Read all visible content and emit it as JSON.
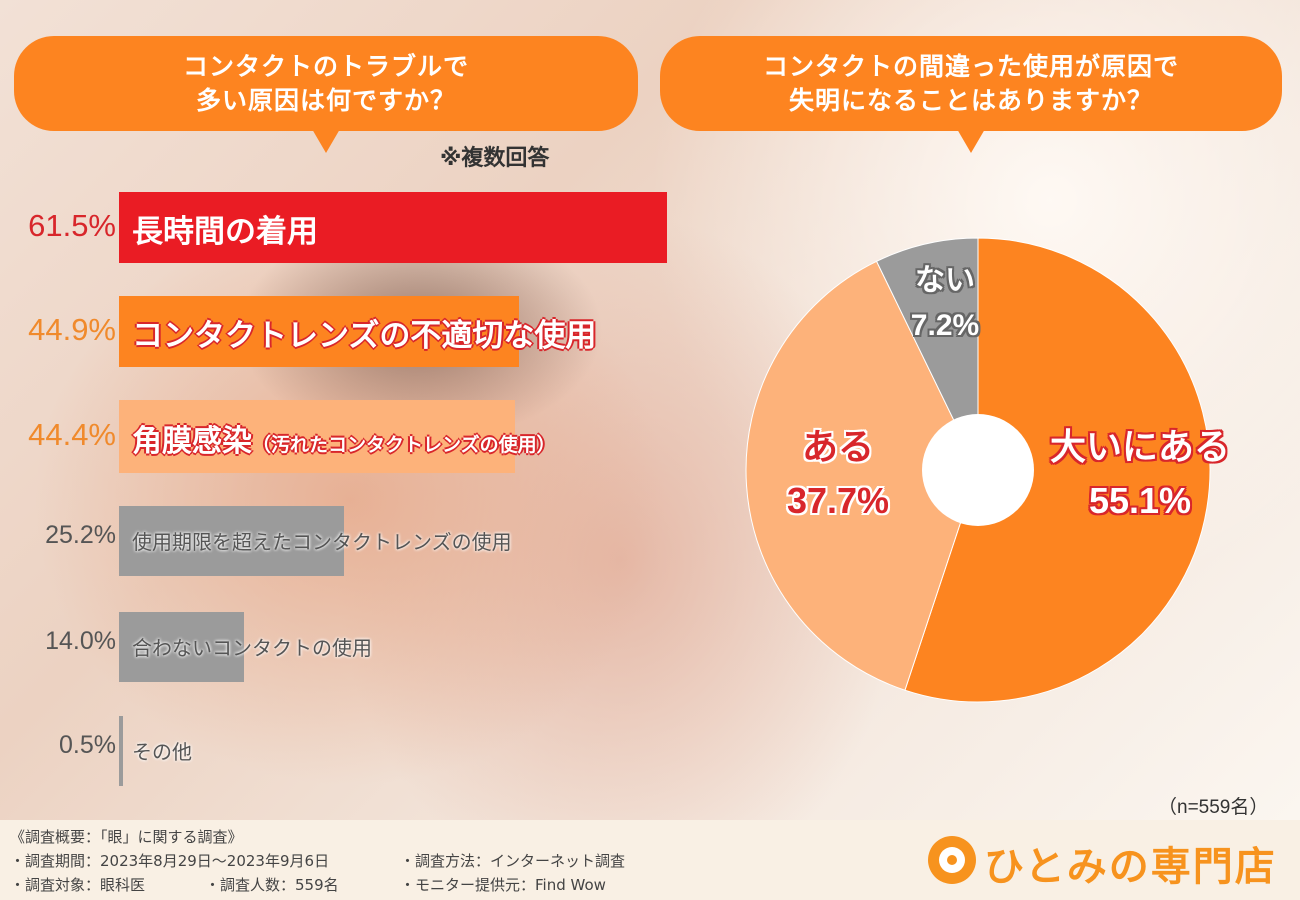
{
  "left_panel": {
    "title_line1": "コンタクトのトラブルで",
    "title_line2": "多い原因は何ですか？",
    "note": "※複数回答"
  },
  "right_panel": {
    "title_line1": "コンタクトの間違った使用が原因で",
    "title_line2": "失明になることはありますか？"
  },
  "colors": {
    "orange": "#fd8420",
    "red": "#ea1c24",
    "light_orange": "#fdb27a",
    "gray": "#9b9b9b",
    "text_red": "#d8262b",
    "text_orange": "#f08a2c",
    "text_gray": "#555555"
  },
  "chart_data": [
    {
      "type": "bar",
      "orientation": "horizontal",
      "note": "※複数回答",
      "categories": [
        "長時間の着用",
        "コンタクトレンズの不適切な使用",
        "角膜感染",
        "使用期限を超えたコンタクトレンズの使用",
        "合わないコンタクトの使用",
        "その他"
      ],
      "category_suffixes": [
        "",
        "",
        "（汚れたコンタクトレンズの使用）",
        "",
        "",
        ""
      ],
      "values": [
        61.5,
        44.9,
        44.4,
        25.2,
        14.0,
        0.5
      ],
      "value_labels": [
        "61.5%",
        "44.9%",
        "44.4%",
        "25.2%",
        "14.0%",
        "0.5%"
      ]
    },
    {
      "type": "pie",
      "style": "donut",
      "slices": [
        {
          "label": "大いにある",
          "value": 55.1,
          "value_label": "55.1%"
        },
        {
          "label": "ある",
          "value": 37.7,
          "value_label": "37.7%"
        },
        {
          "label": "ない",
          "value": 7.2,
          "value_label": "7.2%"
        }
      ],
      "sample": "（n=559名）"
    }
  ],
  "footer": {
    "survey_title": "《調査概要：「眼」に関する調査》",
    "period": "・調査期間：2023年8月29日～2023年9月6日",
    "method": "・調査方法：インターネット調査",
    "target": "・調査対象：眼科医",
    "count": "・調査人数：559名",
    "provider": "・モニター提供元：Find Wow",
    "brand": "ひとみの専門店"
  }
}
